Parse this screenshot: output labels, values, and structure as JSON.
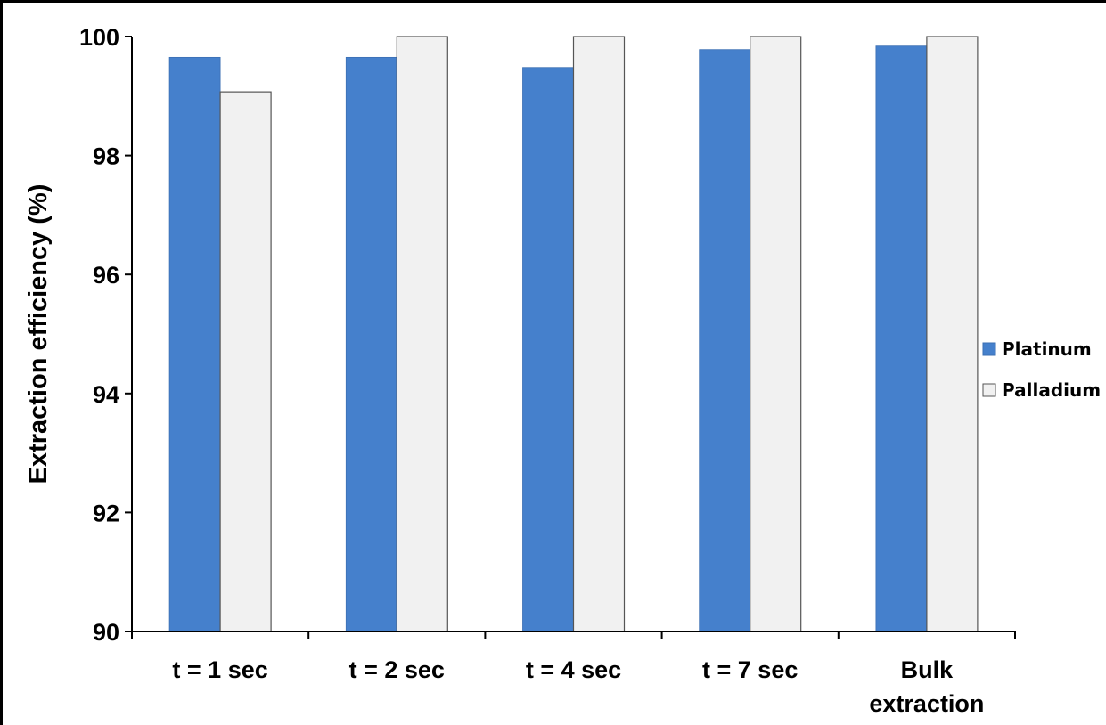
{
  "chart_data": {
    "type": "bar",
    "categories": [
      [
        "t = 1 sec"
      ],
      [
        "t = 2 sec"
      ],
      [
        "t = 4 sec"
      ],
      [
        "t = 7 sec"
      ],
      [
        "Bulk",
        "extraction"
      ]
    ],
    "series": [
      {
        "name": "Platinum",
        "color": "#4580cc",
        "values": [
          99.65,
          99.65,
          99.48,
          99.78,
          99.84
        ]
      },
      {
        "name": "Palladium",
        "color": "#f1f1f1",
        "values": [
          99.07,
          100.0,
          100.0,
          100.0,
          100.0
        ]
      }
    ],
    "title": "",
    "xlabel": "",
    "ylabel": "Extraction efficiency (%)",
    "ylim": [
      90,
      100
    ],
    "yticks": [
      "90",
      "92",
      "94",
      "96",
      "98",
      "100"
    ],
    "grid": false,
    "legend_position": "right"
  }
}
